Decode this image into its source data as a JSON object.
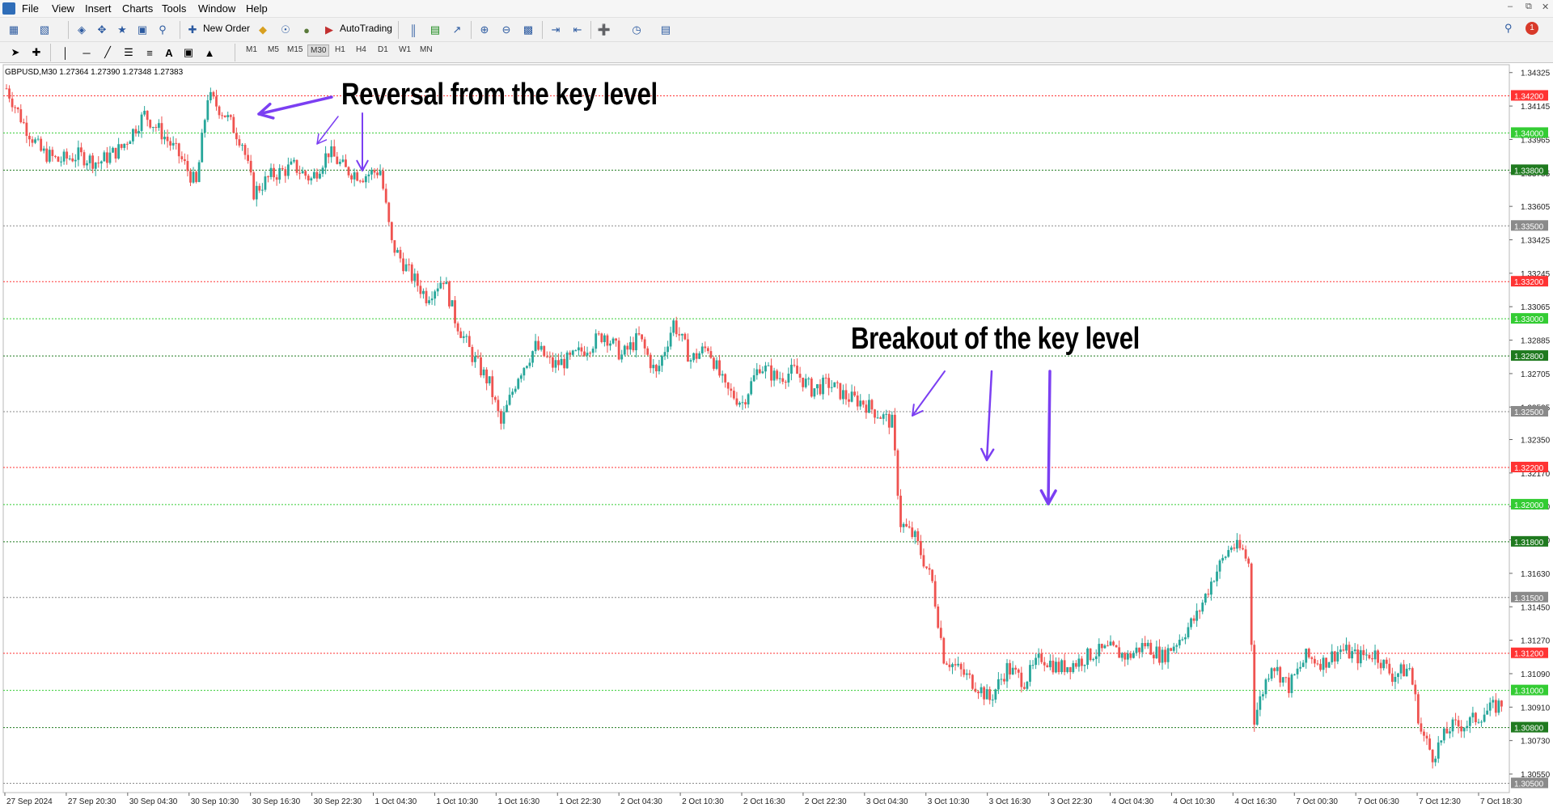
{
  "menu": {
    "items": [
      "File",
      "View",
      "Insert",
      "Charts",
      "Tools",
      "Window",
      "Help"
    ]
  },
  "toolbar": {
    "new_order": "New Order",
    "autotrading": "AutoTrading",
    "notification_count": "1"
  },
  "timeframes": [
    "M1",
    "M5",
    "M15",
    "M30",
    "H1",
    "H4",
    "D1",
    "W1",
    "MN"
  ],
  "active_timeframe": "M30",
  "chart_header": "GBPUSD,M30  1.27364 1.27390 1.27348 1.27383",
  "annotations": {
    "reversal": "Reversal from the key level",
    "breakout": "Breakout of the key level"
  },
  "colors": {
    "bull": "#26a69a",
    "bear": "#ef5350",
    "arrow": "#7b3ff2",
    "red_level": "#ff3333",
    "green_level": "#33cc33",
    "dark_green_level": "#1f7a1f",
    "gray_level": "#8a8a8a"
  },
  "chart_data": {
    "type": "candlestick",
    "symbol": "GBPUSD",
    "timeframe": "M30",
    "ylim": [
      1.3045,
      1.3435
    ],
    "y_ticks": [
      "1.34325",
      "1.34145",
      "1.33965",
      "1.33785",
      "1.33605",
      "1.33425",
      "1.33245",
      "1.33065",
      "1.32885",
      "1.32705",
      "1.32525",
      "1.32350",
      "1.32170",
      "1.31990",
      "1.31810",
      "1.31630",
      "1.31450",
      "1.31270",
      "1.31090",
      "1.30910",
      "1.30730",
      "1.30550"
    ],
    "x_labels": [
      "27 Sep 2024",
      "27 Sep 20:30",
      "30 Sep 04:30",
      "30 Sep 10:30",
      "30 Sep 16:30",
      "30 Sep 22:30",
      "1 Oct 04:30",
      "1 Oct 10:30",
      "1 Oct 16:30",
      "1 Oct 22:30",
      "2 Oct 04:30",
      "2 Oct 10:30",
      "2 Oct 16:30",
      "2 Oct 22:30",
      "3 Oct 04:30",
      "3 Oct 10:30",
      "3 Oct 16:30",
      "3 Oct 22:30",
      "4 Oct 04:30",
      "4 Oct 10:30",
      "4 Oct 16:30",
      "7 Oct 00:30",
      "7 Oct 06:30",
      "7 Oct 12:30",
      "7 Oct 18:30"
    ],
    "levels": [
      {
        "price": 1.342,
        "label": "1.34200",
        "kind": "red"
      },
      {
        "price": 1.34,
        "label": "1.34000",
        "kind": "green"
      },
      {
        "price": 1.338,
        "label": "1.33800",
        "kind": "dark_green"
      },
      {
        "price": 1.335,
        "label": "1.33500",
        "kind": "gray"
      },
      {
        "price": 1.332,
        "label": "1.33200",
        "kind": "red"
      },
      {
        "price": 1.33,
        "label": "1.33000",
        "kind": "green"
      },
      {
        "price": 1.328,
        "label": "1.32800",
        "kind": "dark_green"
      },
      {
        "price": 1.325,
        "label": "1.32500",
        "kind": "gray"
      },
      {
        "price": 1.322,
        "label": "1.32200",
        "kind": "red"
      },
      {
        "price": 1.32,
        "label": "1.32000",
        "kind": "green"
      },
      {
        "price": 1.318,
        "label": "1.31800",
        "kind": "dark_green"
      },
      {
        "price": 1.315,
        "label": "1.31500",
        "kind": "gray"
      },
      {
        "price": 1.312,
        "label": "1.31200",
        "kind": "red"
      },
      {
        "price": 1.31,
        "label": "1.31000",
        "kind": "green"
      },
      {
        "price": 1.308,
        "label": "1.30800",
        "kind": "dark_green"
      },
      {
        "price": 1.305,
        "label": "1.30500",
        "kind": "gray"
      }
    ],
    "close_path": [
      [
        0,
        1.3424
      ],
      [
        6,
        1.3405
      ],
      [
        12,
        1.339
      ],
      [
        18,
        1.3385
      ],
      [
        25,
        1.3388
      ],
      [
        32,
        1.3384
      ],
      [
        40,
        1.3392
      ],
      [
        48,
        1.341
      ],
      [
        54,
        1.34
      ],
      [
        60,
        1.3388
      ],
      [
        66,
        1.3372
      ],
      [
        70,
        1.342
      ],
      [
        76,
        1.341
      ],
      [
        82,
        1.3395
      ],
      [
        86,
        1.3368
      ],
      [
        92,
        1.3377
      ],
      [
        100,
        1.3382
      ],
      [
        106,
        1.3375
      ],
      [
        112,
        1.339
      ],
      [
        118,
        1.338
      ],
      [
        124,
        1.3377
      ],
      [
        130,
        1.338
      ],
      [
        134,
        1.334
      ],
      [
        140,
        1.3325
      ],
      [
        146,
        1.3312
      ],
      [
        152,
        1.3322
      ],
      [
        156,
        1.33
      ],
      [
        162,
        1.328
      ],
      [
        168,
        1.3265
      ],
      [
        172,
        1.3243
      ],
      [
        178,
        1.327
      ],
      [
        184,
        1.3285
      ],
      [
        190,
        1.3275
      ],
      [
        196,
        1.3278
      ],
      [
        202,
        1.3285
      ],
      [
        208,
        1.3292
      ],
      [
        214,
        1.328
      ],
      [
        220,
        1.329
      ],
      [
        226,
        1.327
      ],
      [
        232,
        1.3298
      ],
      [
        238,
        1.3278
      ],
      [
        244,
        1.3285
      ],
      [
        250,
        1.3262
      ],
      [
        256,
        1.3255
      ],
      [
        262,
        1.3275
      ],
      [
        268,
        1.3268
      ],
      [
        274,
        1.3272
      ],
      [
        280,
        1.3262
      ],
      [
        286,
        1.3265
      ],
      [
        292,
        1.3258
      ],
      [
        298,
        1.3255
      ],
      [
        304,
        1.3248
      ],
      [
        308,
        1.3244
      ],
      [
        311,
        1.319
      ],
      [
        316,
        1.3182
      ],
      [
        322,
        1.3158
      ],
      [
        326,
        1.3118
      ],
      [
        332,
        1.311
      ],
      [
        338,
        1.3102
      ],
      [
        342,
        1.3095
      ],
      [
        348,
        1.3112
      ],
      [
        354,
        1.3105
      ],
      [
        360,
        1.3118
      ],
      [
        366,
        1.3112
      ],
      [
        372,
        1.3115
      ],
      [
        378,
        1.312
      ],
      [
        384,
        1.3122
      ],
      [
        390,
        1.3118
      ],
      [
        396,
        1.3125
      ],
      [
        402,
        1.3118
      ],
      [
        408,
        1.3128
      ],
      [
        414,
        1.314
      ],
      [
        420,
        1.3162
      ],
      [
        426,
        1.3178
      ],
      [
        430,
        1.3175
      ],
      [
        432,
        1.3168
      ],
      [
        434,
        1.3085
      ],
      [
        440,
        1.3115
      ],
      [
        446,
        1.3102
      ],
      [
        452,
        1.3118
      ],
      [
        458,
        1.3115
      ],
      [
        464,
        1.3122
      ],
      [
        470,
        1.3118
      ],
      [
        476,
        1.312
      ],
      [
        482,
        1.3108
      ],
      [
        488,
        1.3112
      ],
      [
        492,
        1.3078
      ],
      [
        496,
        1.3065
      ],
      [
        502,
        1.308
      ],
      [
        508,
        1.3082
      ],
      [
        514,
        1.3088
      ],
      [
        520,
        1.3093
      ]
    ],
    "candle_count": 521
  }
}
